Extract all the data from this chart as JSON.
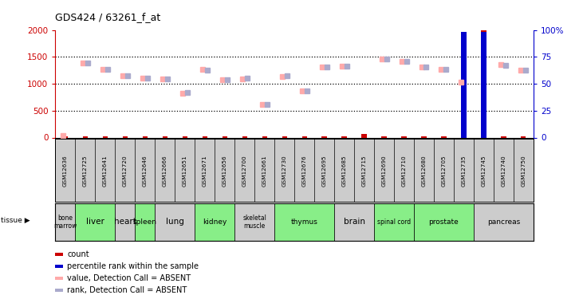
{
  "title": "GDS424 / 63261_f_at",
  "samples": [
    "GSM12636",
    "GSM12725",
    "GSM12641",
    "GSM12720",
    "GSM12646",
    "GSM12666",
    "GSM12651",
    "GSM12671",
    "GSM12656",
    "GSM12700",
    "GSM12661",
    "GSM12730",
    "GSM12676",
    "GSM12695",
    "GSM12685",
    "GSM12715",
    "GSM12690",
    "GSM12710",
    "GSM12680",
    "GSM12705",
    "GSM12735",
    "GSM12745",
    "GSM12740",
    "GSM12750"
  ],
  "tissue_groups": [
    {
      "name": "bone\nmarrow",
      "indices": [
        0
      ],
      "color": "#cccccc"
    },
    {
      "name": "liver",
      "indices": [
        1,
        2
      ],
      "color": "#88ee88"
    },
    {
      "name": "heart",
      "indices": [
        3
      ],
      "color": "#cccccc"
    },
    {
      "name": "spleen",
      "indices": [
        4
      ],
      "color": "#88ee88"
    },
    {
      "name": "lung",
      "indices": [
        5,
        6
      ],
      "color": "#cccccc"
    },
    {
      "name": "kidney",
      "indices": [
        7,
        8
      ],
      "color": "#88ee88"
    },
    {
      "name": "skeletal\nmuscle",
      "indices": [
        9,
        10
      ],
      "color": "#cccccc"
    },
    {
      "name": "thymus",
      "indices": [
        11,
        12,
        13
      ],
      "color": "#88ee88"
    },
    {
      "name": "brain",
      "indices": [
        14,
        15
      ],
      "color": "#cccccc"
    },
    {
      "name": "spinal cord",
      "indices": [
        16,
        17
      ],
      "color": "#88ee88"
    },
    {
      "name": "prostate",
      "indices": [
        18,
        19,
        20
      ],
      "color": "#88ee88"
    },
    {
      "name": "pancreas",
      "indices": [
        21,
        22,
        23
      ],
      "color": "#cccccc"
    }
  ],
  "count_values": [
    15,
    15,
    15,
    15,
    15,
    15,
    15,
    15,
    15,
    15,
    15,
    15,
    15,
    15,
    15,
    60,
    15,
    15,
    15,
    15,
    1050,
    2000,
    15,
    15
  ],
  "percentile_ranks_left": [
    null,
    null,
    null,
    null,
    null,
    null,
    null,
    null,
    null,
    null,
    null,
    null,
    null,
    null,
    null,
    null,
    null,
    null,
    null,
    null,
    1960,
    1960,
    null,
    null
  ],
  "values_absent": [
    30,
    1390,
    1265,
    1155,
    1105,
    1085,
    820,
    1260,
    1080,
    1095,
    620,
    1140,
    865,
    1310,
    1330,
    null,
    1460,
    1415,
    1315,
    1265,
    1030,
    null,
    1350,
    1250
  ],
  "ranks_absent": [
    null,
    1385,
    1260,
    1150,
    1100,
    1090,
    830,
    1255,
    1080,
    1100,
    615,
    1145,
    860,
    1305,
    1325,
    null,
    1455,
    1410,
    1310,
    1260,
    null,
    null,
    1340,
    1245
  ],
  "ylim": [
    0,
    2000
  ],
  "yticks_left": [
    0,
    500,
    1000,
    1500,
    2000
  ],
  "yticks_right": [
    0,
    25,
    50,
    75,
    100
  ],
  "ytick_labels_right": [
    "0",
    "25",
    "50",
    "75",
    "100%"
  ],
  "left_tick_color": "#cc0000",
  "right_tick_color": "#0000cc",
  "bar_color_count": "#cc0000",
  "bar_color_pct": "#0000cc",
  "dot_color_value": "#ffaaaa",
  "dot_color_rank": "#aaaacc",
  "sample_box_color": "#cccccc",
  "legend_items": [
    {
      "color": "#cc0000",
      "label": "count"
    },
    {
      "color": "#0000cc",
      "label": "percentile rank within the sample"
    },
    {
      "color": "#ffaaaa",
      "label": "value, Detection Call = ABSENT"
    },
    {
      "color": "#aaaacc",
      "label": "rank, Detection Call = ABSENT"
    }
  ]
}
